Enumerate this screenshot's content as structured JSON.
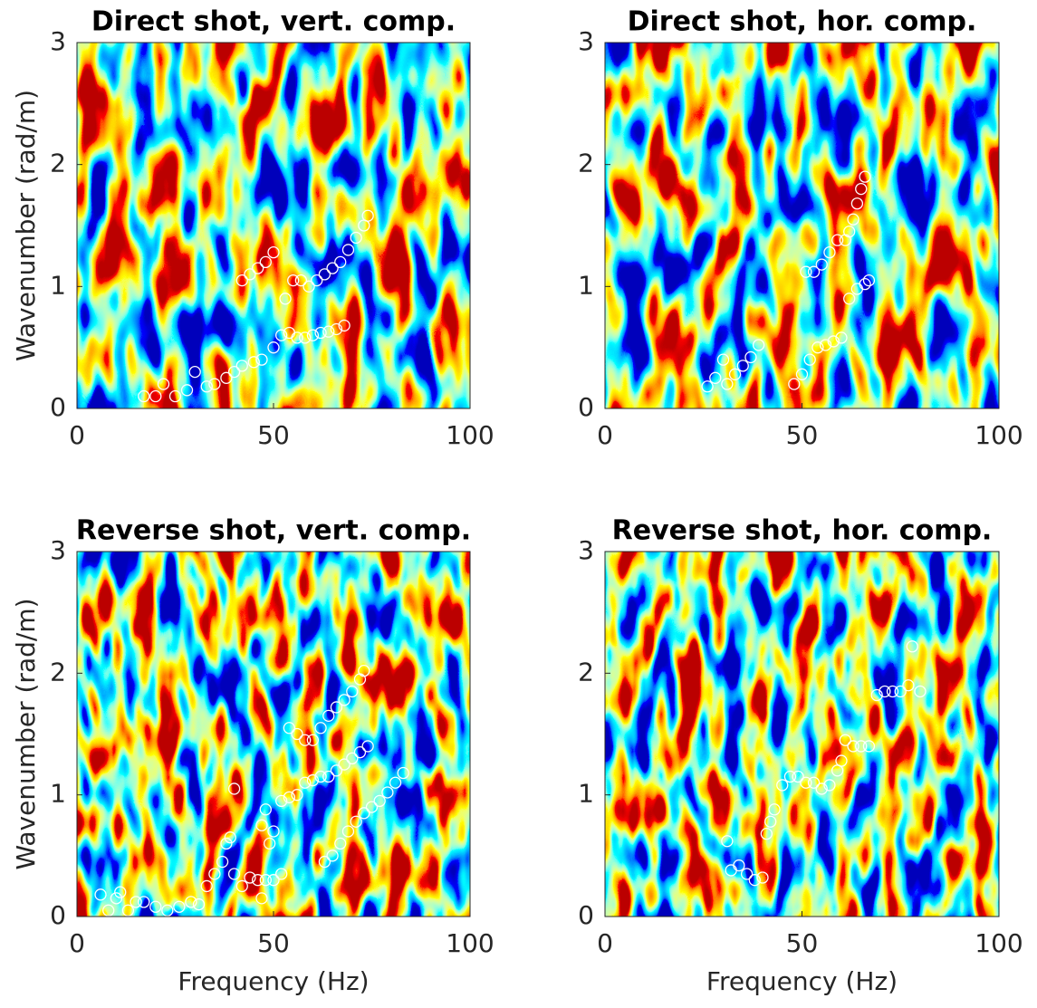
{
  "chart_data": [
    {
      "type": "scatter",
      "title": "Direct shot, vert. comp.",
      "ylabel": "Wavenumber (rad/m)",
      "xlim": [
        0,
        100
      ],
      "ylim": [
        0,
        3
      ],
      "xticks": [
        0,
        50,
        100
      ],
      "yticks": [
        0,
        1,
        2,
        3
      ],
      "marker_color": "#ffffff",
      "x": [
        17,
        20,
        22,
        25,
        28,
        30,
        33,
        35,
        38,
        40,
        42,
        45,
        47,
        50,
        52,
        54,
        56,
        58,
        60,
        62,
        64,
        66,
        68,
        42,
        44,
        46,
        48,
        50,
        53,
        55,
        57,
        59,
        61,
        63,
        65,
        67,
        69,
        71,
        73,
        74
      ],
      "y": [
        0.1,
        0.1,
        0.2,
        0.1,
        0.15,
        0.3,
        0.18,
        0.2,
        0.25,
        0.3,
        0.35,
        0.38,
        0.4,
        0.5,
        0.6,
        0.62,
        0.58,
        0.58,
        0.6,
        0.62,
        0.63,
        0.65,
        0.68,
        1.05,
        1.1,
        1.15,
        1.2,
        1.28,
        0.9,
        1.05,
        1.05,
        1.0,
        1.05,
        1.1,
        1.15,
        1.2,
        1.3,
        1.4,
        1.5,
        1.58
      ]
    },
    {
      "type": "scatter",
      "title": "Direct shot, hor. comp.",
      "xlim": [
        0,
        100
      ],
      "ylim": [
        0,
        3
      ],
      "xticks": [
        0,
        50,
        100
      ],
      "yticks": [
        0,
        1,
        2,
        3
      ],
      "marker_color": "#ffffff",
      "x": [
        26,
        28,
        30,
        31,
        33,
        35,
        37,
        39,
        48,
        50,
        52,
        54,
        56,
        58,
        60,
        62,
        64,
        66,
        67,
        51,
        53,
        55,
        57,
        59,
        61,
        62,
        63,
        64,
        65,
        66
      ],
      "y": [
        0.18,
        0.25,
        0.4,
        0.2,
        0.28,
        0.35,
        0.42,
        0.52,
        0.2,
        0.28,
        0.4,
        0.5,
        0.52,
        0.55,
        0.58,
        0.9,
        0.98,
        1.02,
        1.05,
        1.12,
        1.12,
        1.18,
        1.28,
        1.38,
        1.38,
        1.45,
        1.55,
        1.68,
        1.8,
        1.9
      ]
    },
    {
      "type": "scatter",
      "title": "Reverse shot, vert. comp.",
      "ylabel": "Wavenumber (rad/m)",
      "xlabel": "Frequency (Hz)",
      "xlim": [
        0,
        100
      ],
      "ylim": [
        0,
        3
      ],
      "xticks": [
        0,
        50,
        100
      ],
      "yticks": [
        0,
        1,
        2,
        3
      ],
      "marker_color": "#ffffff",
      "x": [
        6,
        8,
        10,
        11,
        13,
        15,
        17,
        20,
        23,
        26,
        29,
        31,
        33,
        35,
        37,
        38,
        39,
        40,
        42,
        44,
        46,
        47,
        48,
        50,
        52,
        40,
        47,
        48,
        49,
        50,
        52,
        54,
        56,
        58,
        60,
        62,
        64,
        66,
        68,
        70,
        72,
        74,
        54,
        56,
        58,
        60,
        62,
        64,
        66,
        68,
        70,
        72,
        73,
        63,
        65,
        67,
        69,
        71,
        73,
        75,
        77,
        79,
        81,
        83
      ],
      "y": [
        0.18,
        0.05,
        0.15,
        0.2,
        0.05,
        0.12,
        0.12,
        0.08,
        0.05,
        0.08,
        0.12,
        0.1,
        0.25,
        0.35,
        0.45,
        0.6,
        0.65,
        0.35,
        0.25,
        0.32,
        0.3,
        0.15,
        0.3,
        0.3,
        0.35,
        1.05,
        0.75,
        0.88,
        0.6,
        0.7,
        0.95,
        0.98,
        1.0,
        1.1,
        1.12,
        1.15,
        1.15,
        1.2,
        1.25,
        1.3,
        1.35,
        1.4,
        1.55,
        1.5,
        1.45,
        1.45,
        1.55,
        1.65,
        1.72,
        1.78,
        1.85,
        1.95,
        2.02,
        0.45,
        0.5,
        0.6,
        0.7,
        0.78,
        0.85,
        0.9,
        0.95,
        1.02,
        1.1,
        1.18
      ]
    },
    {
      "type": "scatter",
      "title": "Reverse shot, hor. comp.",
      "xlabel": "Frequency (Hz)",
      "xlim": [
        0,
        100
      ],
      "ylim": [
        0,
        3
      ],
      "xticks": [
        0,
        50,
        100
      ],
      "yticks": [
        0,
        1,
        2,
        3
      ],
      "marker_color": "#ffffff",
      "x": [
        31,
        32,
        34,
        36,
        38,
        40,
        41,
        42,
        43,
        45,
        47,
        49,
        51,
        53,
        55,
        57,
        59,
        60,
        61,
        63,
        65,
        67,
        69,
        71,
        73,
        75,
        77,
        78,
        80
      ],
      "y": [
        0.62,
        0.38,
        0.42,
        0.35,
        0.3,
        0.32,
        0.68,
        0.78,
        0.88,
        1.08,
        1.15,
        1.15,
        1.1,
        1.1,
        1.05,
        1.08,
        1.2,
        1.28,
        1.45,
        1.4,
        1.4,
        1.4,
        1.82,
        1.85,
        1.85,
        1.85,
        1.9,
        2.22,
        1.85
      ]
    }
  ]
}
